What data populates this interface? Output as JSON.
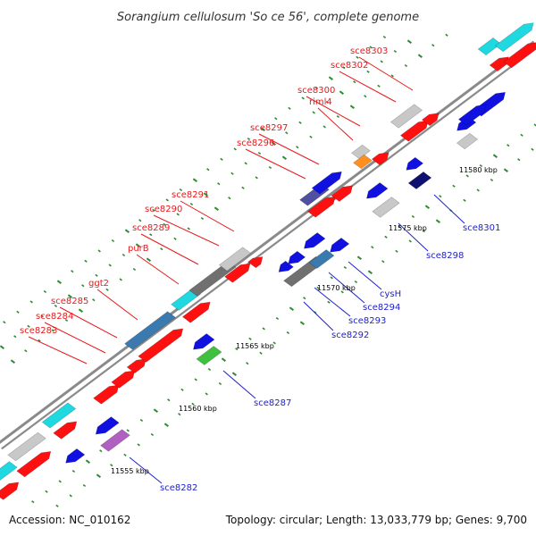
{
  "title": "Sorangium cellulosum 'So ce 56', complete genome",
  "footer": {
    "accession": "Accession: NC_010162",
    "stats": "Topology: circular; Length: 13,033,779 bp; Genes: 9,700"
  },
  "colors": {
    "forward_label": "#e8191c",
    "reverse_label": "#1f22cc",
    "backbone": "#8a8a8a",
    "tick": "#2e8b2e"
  },
  "ticks": [
    "11555 kbp",
    "11560 kbp",
    "11565 kbp",
    "11570 kbp",
    "11575 kbp",
    "11580 kbp"
  ],
  "forward_labels": [
    "sce8283",
    "sce8284",
    "sce8285",
    "ggt2",
    "purB",
    "sce8289",
    "sce8290",
    "sce8291",
    "sce8296",
    "sce8297",
    "riml4",
    "sce8300",
    "sce8302",
    "sce8303"
  ],
  "reverse_labels": [
    "sce8282",
    "sce8287",
    "sce8292",
    "sce8293",
    "sce8294",
    "cysH",
    "sce8298",
    "sce8301"
  ]
}
